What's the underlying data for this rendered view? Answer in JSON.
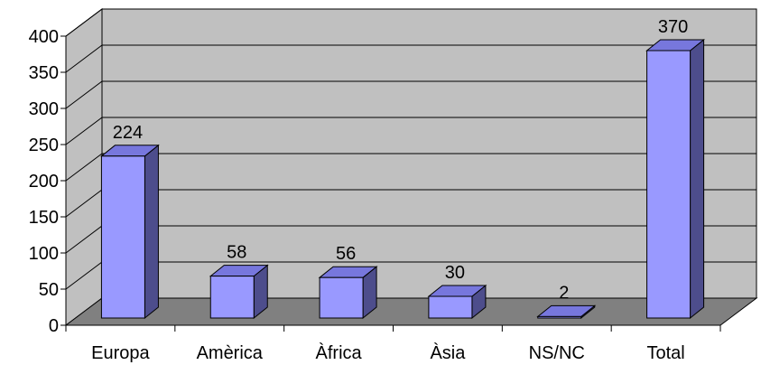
{
  "chart_data": {
    "type": "bar",
    "categories": [
      "Europa",
      "Amèrica",
      "Àfrica",
      "Àsia",
      "NS/NC",
      "Total"
    ],
    "values": [
      224,
      58,
      56,
      30,
      2,
      370
    ],
    "data_labels": [
      "224",
      "58",
      "56",
      "30",
      "2",
      "370"
    ],
    "title": "",
    "xlabel": "",
    "ylabel": "",
    "ylim": [
      0,
      400
    ],
    "yticks": [
      0,
      50,
      100,
      150,
      200,
      250,
      300,
      350,
      400
    ],
    "grid": true,
    "legend": "none",
    "style": "3d",
    "colors": {
      "bar_front": "#9999ff",
      "bar_side": "#4d4d8c",
      "bar_top": "#7777dd",
      "wall": "#c0c0c0",
      "floor": "#808080",
      "gridline": "#000000"
    }
  }
}
